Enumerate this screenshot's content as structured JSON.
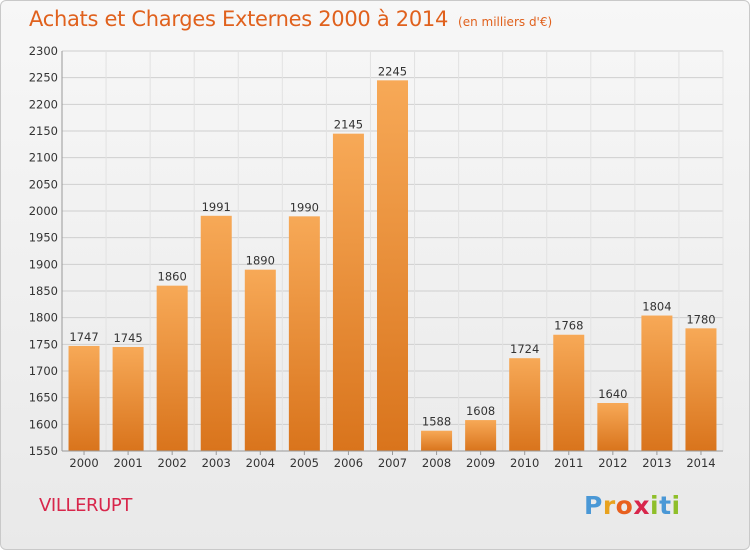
{
  "header": {
    "title": "Achats et Charges Externes 2000 à 2014",
    "unit_note": "(en milliers d'€)"
  },
  "footer": {
    "place": "VILLERUPT",
    "logo_letters": [
      "P",
      "r",
      "o",
      "x",
      "i",
      "t",
      "i"
    ]
  },
  "colors": {
    "bar_light": "#f7a957",
    "bar_dark": "#d9741c",
    "title": "#e0611d",
    "place": "#d8264b",
    "grid": "#cfcfcf",
    "text": "#333333"
  },
  "chart_data": {
    "type": "bar",
    "title": "Achats et Charges Externes 2000 à 2014",
    "subtitle": "(en milliers d'€)",
    "xlabel": "",
    "ylabel": "",
    "categories": [
      "2000",
      "2001",
      "2002",
      "2003",
      "2004",
      "2005",
      "2006",
      "2007",
      "2008",
      "2009",
      "2010",
      "2011",
      "2012",
      "2013",
      "2014"
    ],
    "values": [
      1747,
      1745,
      1860,
      1991,
      1890,
      1990,
      2145,
      2245,
      1588,
      1608,
      1724,
      1768,
      1640,
      1804,
      1780
    ],
    "ylim": [
      1550,
      2300
    ],
    "yticks": [
      1550,
      1600,
      1650,
      1700,
      1750,
      1800,
      1850,
      1900,
      1950,
      2000,
      2050,
      2100,
      2150,
      2200,
      2250,
      2300
    ],
    "grid": true,
    "data_labels": true
  }
}
